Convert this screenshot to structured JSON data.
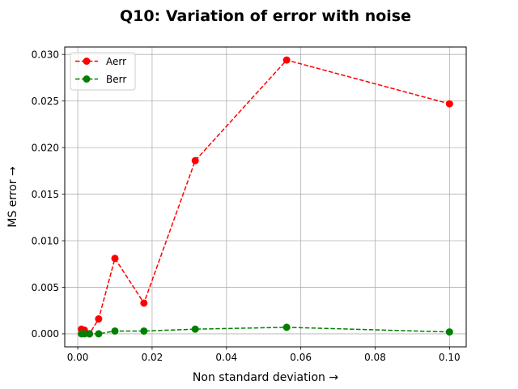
{
  "chart_data": {
    "type": "line",
    "title": "Q10: Variation of error with noise",
    "xlabel": "Non standard deviation →",
    "ylabel": "MS error →",
    "xlim": [
      -0.0035,
      0.1045
    ],
    "ylim": [
      -0.0014,
      0.0308
    ],
    "xticks": [
      0.0,
      0.02,
      0.04,
      0.06,
      0.08,
      0.1
    ],
    "xtick_labels": [
      "0.00",
      "0.02",
      "0.04",
      "0.06",
      "0.08",
      "0.10"
    ],
    "yticks": [
      0.0,
      0.005,
      0.01,
      0.015,
      0.02,
      0.025,
      0.03
    ],
    "ytick_labels": [
      "0.000",
      "0.005",
      "0.010",
      "0.015",
      "0.020",
      "0.025",
      "0.030"
    ],
    "grid": true,
    "legend_position": "top-left",
    "x": [
      0.001,
      0.00178,
      0.00316,
      0.00562,
      0.01,
      0.0178,
      0.0316,
      0.0562,
      0.1
    ],
    "series": [
      {
        "name": "Aerr",
        "color": "#ff0000",
        "line_style": "dashed",
        "marker": "circle",
        "values": [
          0.0005,
          0.0004,
          0.0,
          0.0016,
          0.0081,
          0.0033,
          0.0186,
          0.0294,
          0.0247
        ]
      },
      {
        "name": "Berr",
        "color": "#008000",
        "line_style": "dashed",
        "marker": "circle",
        "values": [
          0.0,
          0.0,
          0.0,
          0.0,
          0.0003,
          0.0003,
          0.0005,
          0.0007,
          0.0002
        ]
      }
    ]
  }
}
